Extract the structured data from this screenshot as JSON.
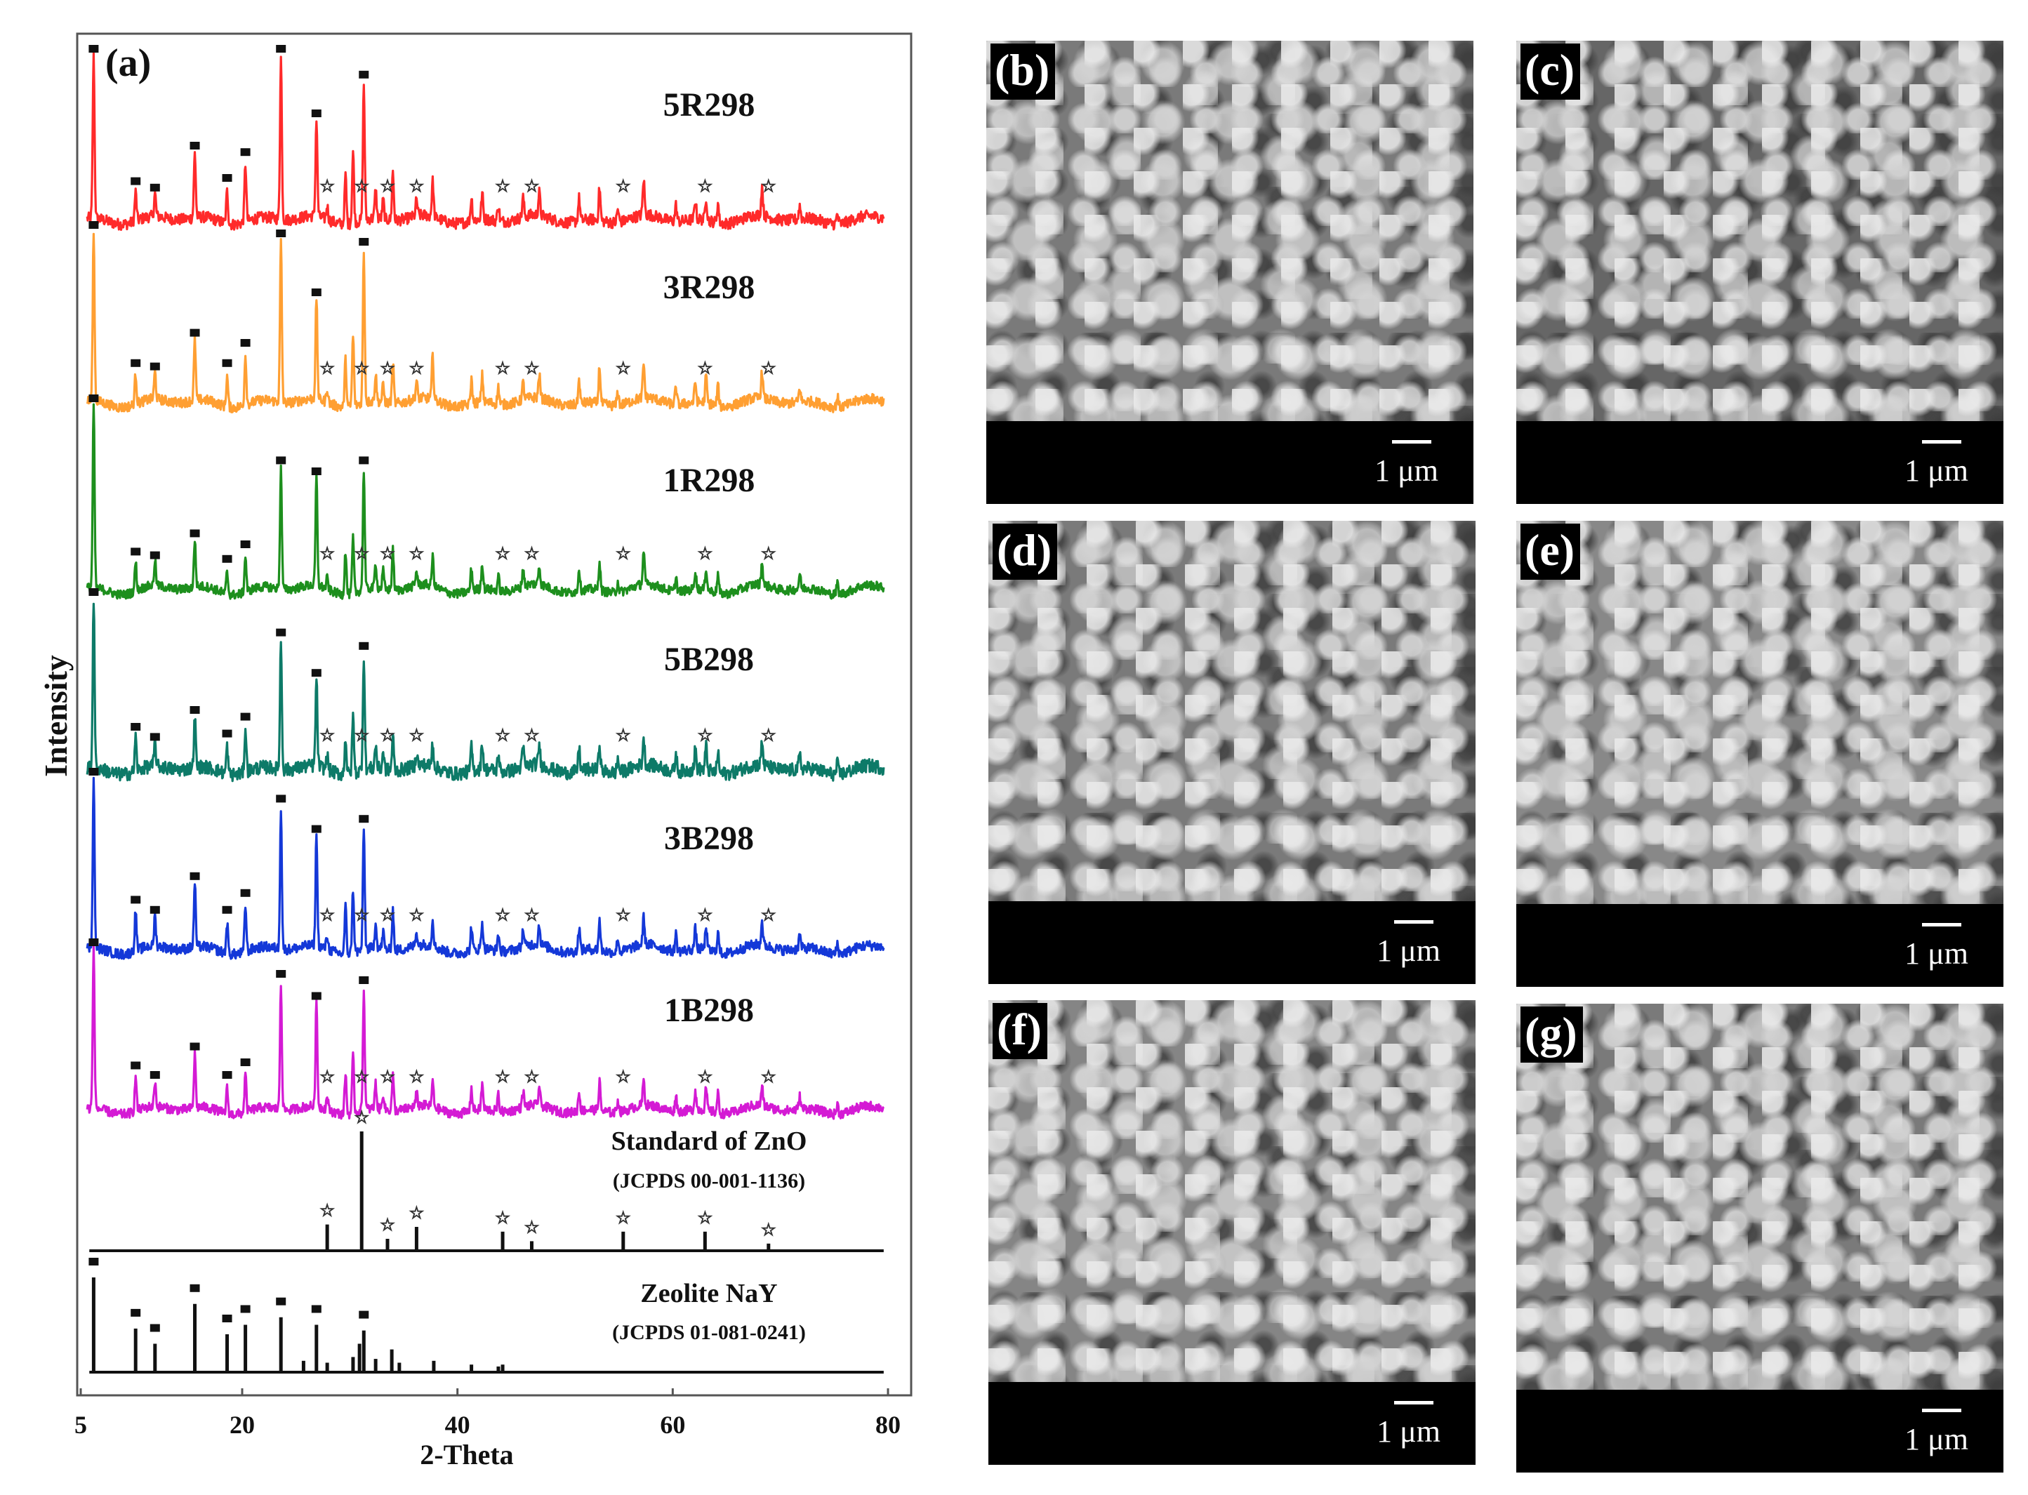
{
  "figure": {
    "panel_a_label": "(a)",
    "chart_data": {
      "type": "line",
      "title": "",
      "xlabel": "2-Theta",
      "ylabel": "Intensity",
      "xlim": [
        5,
        80
      ],
      "xticks": [
        5,
        20,
        40,
        60,
        80
      ],
      "series": [
        {
          "name": "5R298",
          "color": "#ff2a2a",
          "kind": "pattern",
          "peaks": [
            [
              6.2,
              100
            ],
            [
              10.1,
              18
            ],
            [
              11.9,
              14
            ],
            [
              15.6,
              40
            ],
            [
              18.6,
              20
            ],
            [
              20.3,
              36
            ],
            [
              23.6,
              100
            ],
            [
              26.9,
              60
            ],
            [
              27.9,
              8
            ],
            [
              29.6,
              30
            ],
            [
              30.3,
              44
            ],
            [
              31.3,
              84
            ],
            [
              32.4,
              18
            ],
            [
              33.1,
              12
            ],
            [
              34.0,
              30
            ],
            [
              36.2,
              10
            ],
            [
              37.7,
              22
            ],
            [
              41.3,
              14
            ],
            [
              42.3,
              16
            ],
            [
              43.8,
              10
            ],
            [
              46.1,
              12
            ],
            [
              47.6,
              14
            ],
            [
              51.3,
              14
            ],
            [
              53.2,
              20
            ],
            [
              54.9,
              8
            ],
            [
              57.3,
              22
            ],
            [
              60.3,
              10
            ],
            [
              62.1,
              12
            ],
            [
              63.1,
              14
            ],
            [
              64.2,
              12
            ],
            [
              68.3,
              18
            ],
            [
              71.8,
              8
            ],
            [
              75.3,
              6
            ]
          ],
          "noise": 3.5,
          "zno_marks": [
            27.9,
            31.1,
            33.5,
            36.2,
            44.2,
            46.9,
            55.4,
            63.0,
            68.9
          ]
        },
        {
          "name": "3R298",
          "color": "#ff9f32",
          "kind": "pattern",
          "peaks": [
            [
              6.2,
              100
            ],
            [
              10.1,
              18
            ],
            [
              11.9,
              16
            ],
            [
              15.6,
              36
            ],
            [
              18.6,
              18
            ],
            [
              20.3,
              30
            ],
            [
              23.6,
              95
            ],
            [
              26.9,
              60
            ],
            [
              27.9,
              8
            ],
            [
              29.6,
              28
            ],
            [
              30.3,
              42
            ],
            [
              31.3,
              90
            ],
            [
              32.4,
              16
            ],
            [
              33.1,
              10
            ],
            [
              34.0,
              24
            ],
            [
              36.2,
              10
            ],
            [
              37.7,
              26
            ],
            [
              41.3,
              14
            ],
            [
              42.3,
              16
            ],
            [
              43.8,
              10
            ],
            [
              46.1,
              10
            ],
            [
              47.6,
              14
            ],
            [
              51.3,
              14
            ],
            [
              53.2,
              22
            ],
            [
              54.9,
              8
            ],
            [
              57.3,
              20
            ],
            [
              60.3,
              10
            ],
            [
              62.1,
              12
            ],
            [
              63.1,
              16
            ],
            [
              64.2,
              12
            ],
            [
              68.3,
              16
            ],
            [
              71.8,
              8
            ],
            [
              75.3,
              6
            ]
          ],
          "noise": 3.0,
          "zno_marks": [
            27.9,
            31.1,
            33.5,
            36.2,
            44.2,
            46.9,
            55.4,
            63.0,
            68.9
          ]
        },
        {
          "name": "1R298",
          "color": "#1d8f1d",
          "kind": "pattern",
          "peaks": [
            [
              6.2,
              100
            ],
            [
              10.1,
              16
            ],
            [
              11.9,
              14
            ],
            [
              15.6,
              26
            ],
            [
              18.6,
              12
            ],
            [
              20.3,
              20
            ],
            [
              23.6,
              66
            ],
            [
              26.9,
              60
            ],
            [
              27.9,
              6
            ],
            [
              29.6,
              24
            ],
            [
              30.3,
              30
            ],
            [
              31.3,
              66
            ],
            [
              32.4,
              14
            ],
            [
              33.1,
              10
            ],
            [
              34.0,
              22
            ],
            [
              36.2,
              8
            ],
            [
              37.7,
              16
            ],
            [
              41.3,
              12
            ],
            [
              42.3,
              14
            ],
            [
              43.8,
              8
            ],
            [
              46.1,
              10
            ],
            [
              47.6,
              10
            ],
            [
              51.3,
              12
            ],
            [
              53.2,
              16
            ],
            [
              54.9,
              6
            ],
            [
              57.3,
              18
            ],
            [
              60.3,
              8
            ],
            [
              62.1,
              10
            ],
            [
              63.1,
              12
            ],
            [
              64.2,
              10
            ],
            [
              68.3,
              12
            ],
            [
              71.8,
              8
            ],
            [
              75.3,
              6
            ]
          ],
          "noise": 2.5,
          "zno_marks": [
            27.9,
            31.1,
            33.5,
            36.2,
            44.2,
            46.9,
            55.4,
            63.0,
            68.9
          ]
        },
        {
          "name": "5B298",
          "color": "#0d7a68",
          "kind": "pattern",
          "peaks": [
            [
              6.2,
              100
            ],
            [
              10.1,
              20
            ],
            [
              11.9,
              14
            ],
            [
              15.6,
              30
            ],
            [
              18.6,
              16
            ],
            [
              20.3,
              26
            ],
            [
              23.6,
              76
            ],
            [
              26.9,
              52
            ],
            [
              27.9,
              8
            ],
            [
              29.6,
              22
            ],
            [
              30.3,
              34
            ],
            [
              31.3,
              68
            ],
            [
              32.4,
              14
            ],
            [
              33.1,
              10
            ],
            [
              34.0,
              20
            ],
            [
              36.2,
              8
            ],
            [
              37.7,
              14
            ],
            [
              41.3,
              14
            ],
            [
              42.3,
              16
            ],
            [
              43.8,
              10
            ],
            [
              46.1,
              12
            ],
            [
              47.6,
              12
            ],
            [
              51.3,
              14
            ],
            [
              53.2,
              16
            ],
            [
              54.9,
              8
            ],
            [
              57.3,
              16
            ],
            [
              60.3,
              10
            ],
            [
              62.1,
              12
            ],
            [
              63.1,
              14
            ],
            [
              64.2,
              12
            ],
            [
              68.3,
              14
            ],
            [
              71.8,
              8
            ],
            [
              75.3,
              6
            ]
          ],
          "noise": 4.0,
          "zno_marks": [
            27.9,
            31.1,
            33.5,
            36.2,
            44.2,
            46.9,
            55.4,
            63.0,
            68.9
          ]
        },
        {
          "name": "3B298",
          "color": "#1438d8",
          "kind": "pattern",
          "peaks": [
            [
              6.2,
              100
            ],
            [
              10.1,
              24
            ],
            [
              11.9,
              18
            ],
            [
              15.6,
              38
            ],
            [
              18.6,
              18
            ],
            [
              20.3,
              28
            ],
            [
              23.6,
              84
            ],
            [
              26.9,
              66
            ],
            [
              27.9,
              8
            ],
            [
              29.6,
              28
            ],
            [
              30.3,
              38
            ],
            [
              31.3,
              72
            ],
            [
              32.4,
              16
            ],
            [
              33.1,
              10
            ],
            [
              34.0,
              24
            ],
            [
              36.2,
              8
            ],
            [
              37.7,
              16
            ],
            [
              41.3,
              14
            ],
            [
              42.3,
              16
            ],
            [
              43.8,
              10
            ],
            [
              46.1,
              10
            ],
            [
              47.6,
              12
            ],
            [
              51.3,
              14
            ],
            [
              53.2,
              18
            ],
            [
              54.9,
              8
            ],
            [
              57.3,
              16
            ],
            [
              60.3,
              10
            ],
            [
              62.1,
              12
            ],
            [
              63.1,
              14
            ],
            [
              64.2,
              12
            ],
            [
              68.3,
              14
            ],
            [
              71.8,
              8
            ],
            [
              75.3,
              6
            ]
          ],
          "noise": 3.0,
          "zno_marks": [
            27.9,
            31.1,
            33.5,
            36.2,
            44.2,
            46.9,
            55.4,
            63.0,
            68.9
          ]
        },
        {
          "name": "1B298",
          "color": "#d41ad4",
          "kind": "pattern",
          "peaks": [
            [
              6.2,
              100
            ],
            [
              10.1,
              22
            ],
            [
              11.9,
              16
            ],
            [
              15.6,
              34
            ],
            [
              18.6,
              16
            ],
            [
              20.3,
              24
            ],
            [
              23.6,
              80
            ],
            [
              26.9,
              66
            ],
            [
              27.9,
              8
            ],
            [
              29.6,
              26
            ],
            [
              30.3,
              36
            ],
            [
              31.3,
              76
            ],
            [
              32.4,
              16
            ],
            [
              33.1,
              10
            ],
            [
              34.0,
              22
            ],
            [
              36.2,
              8
            ],
            [
              37.7,
              16
            ],
            [
              41.3,
              14
            ],
            [
              42.3,
              16
            ],
            [
              43.8,
              10
            ],
            [
              46.1,
              10
            ],
            [
              47.6,
              12
            ],
            [
              51.3,
              12
            ],
            [
              53.2,
              18
            ],
            [
              54.9,
              8
            ],
            [
              57.3,
              16
            ],
            [
              60.3,
              10
            ],
            [
              62.1,
              12
            ],
            [
              63.1,
              14
            ],
            [
              64.2,
              12
            ],
            [
              68.3,
              12
            ],
            [
              71.8,
              8
            ],
            [
              75.3,
              6
            ]
          ],
          "noise": 3.0,
          "zno_marks": [
            27.9,
            31.1,
            33.5,
            36.2,
            44.2,
            46.9,
            55.4,
            63.0,
            68.9
          ]
        },
        {
          "name": "Standard of ZnO",
          "subtitle": "(JCPDS 00-001-1136)",
          "color": "#000000",
          "kind": "stick",
          "peaks": [
            [
              27.9,
              22
            ],
            [
              31.1,
              100
            ],
            [
              33.5,
              10
            ],
            [
              36.2,
              20
            ],
            [
              44.2,
              16
            ],
            [
              46.9,
              8
            ],
            [
              55.4,
              16
            ],
            [
              63.0,
              16
            ],
            [
              68.9,
              6
            ]
          ],
          "zno_marks": [
            27.9,
            31.1,
            33.5,
            36.2,
            44.2,
            46.9,
            55.4,
            63.0,
            68.9
          ]
        },
        {
          "name": "Zeolite NaY",
          "subtitle": "(JCPDS 01-081-0241)",
          "color": "#000000",
          "kind": "stick",
          "peaks": [
            [
              6.2,
              100
            ],
            [
              10.1,
              46
            ],
            [
              11.9,
              30
            ],
            [
              15.6,
              72
            ],
            [
              18.6,
              40
            ],
            [
              20.3,
              50
            ],
            [
              23.6,
              58
            ],
            [
              25.7,
              12
            ],
            [
              26.9,
              50
            ],
            [
              27.9,
              10
            ],
            [
              30.3,
              16
            ],
            [
              30.9,
              30
            ],
            [
              31.3,
              44
            ],
            [
              32.4,
              14
            ],
            [
              33.9,
              24
            ],
            [
              34.6,
              10
            ],
            [
              37.8,
              12
            ],
            [
              41.3,
              8
            ],
            [
              43.8,
              6
            ],
            [
              44.2,
              8
            ]
          ],
          "zeo_marks": [
            6.2,
            10.1,
            11.9,
            15.6,
            18.6,
            20.3,
            23.6,
            26.9,
            31.3
          ]
        }
      ],
      "zeolite_peak_positions": [
        6.2,
        10.1,
        11.9,
        15.6,
        18.6,
        20.3,
        23.6,
        26.9,
        31.3
      ],
      "legend": "labels placed to the right of each pattern"
    },
    "panels": [
      {
        "letter": "(b)",
        "scale": "1 μm"
      },
      {
        "letter": "(c)",
        "scale": "1 μm"
      },
      {
        "letter": "(d)",
        "scale": "1 μm"
      },
      {
        "letter": "(e)",
        "scale": "1 μm"
      },
      {
        "letter": "(f)",
        "scale": "1 μm"
      },
      {
        "letter": "(g)",
        "scale": "1 μm"
      }
    ]
  }
}
